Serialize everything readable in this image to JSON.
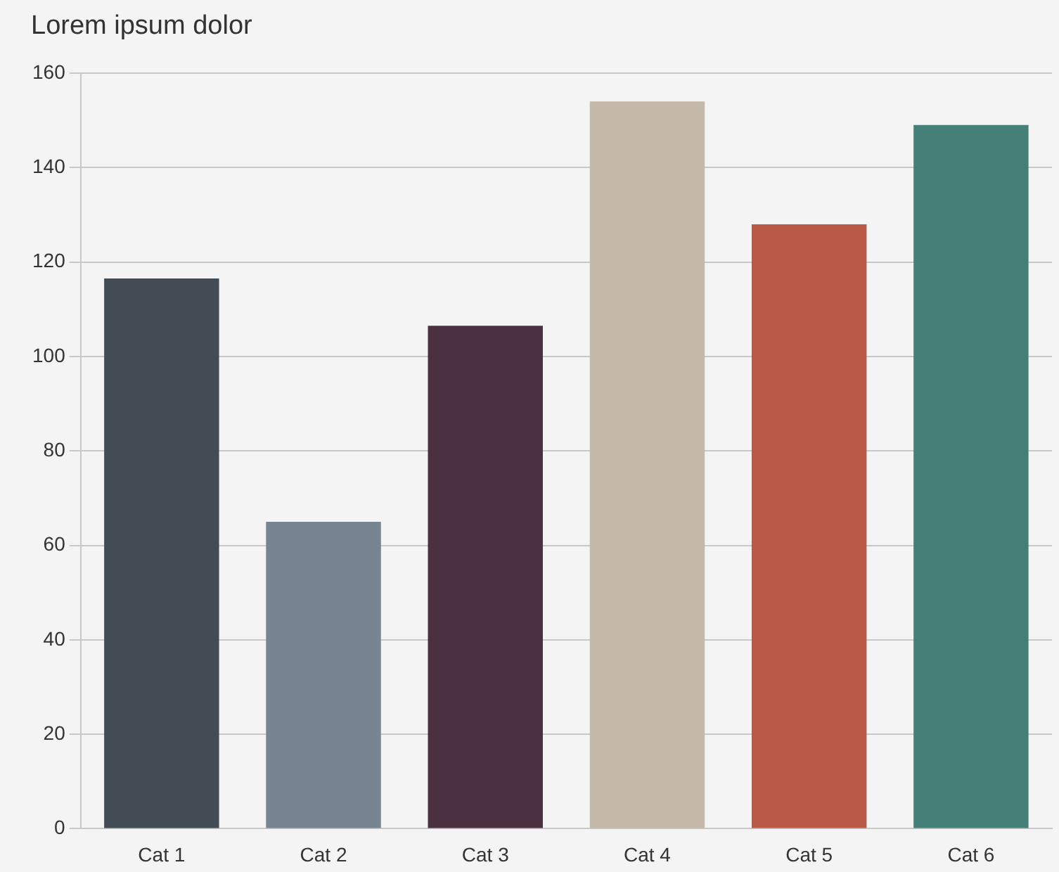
{
  "chart_data": {
    "type": "bar",
    "title": "Lorem ipsum dolor",
    "categories": [
      "Cat 1",
      "Cat 2",
      "Cat 3",
      "Cat 4",
      "Cat 5",
      "Cat 6"
    ],
    "values": [
      116.5,
      65,
      106.5,
      154,
      128,
      149
    ],
    "colors": [
      "#434b55",
      "#778592",
      "#4a3041",
      "#c4b8a9",
      "#b85a45",
      "#448078"
    ],
    "ylim": [
      0,
      160
    ],
    "yticks": [
      0,
      20,
      40,
      60,
      80,
      100,
      120,
      140,
      160
    ],
    "grid": "y",
    "legend": false
  }
}
